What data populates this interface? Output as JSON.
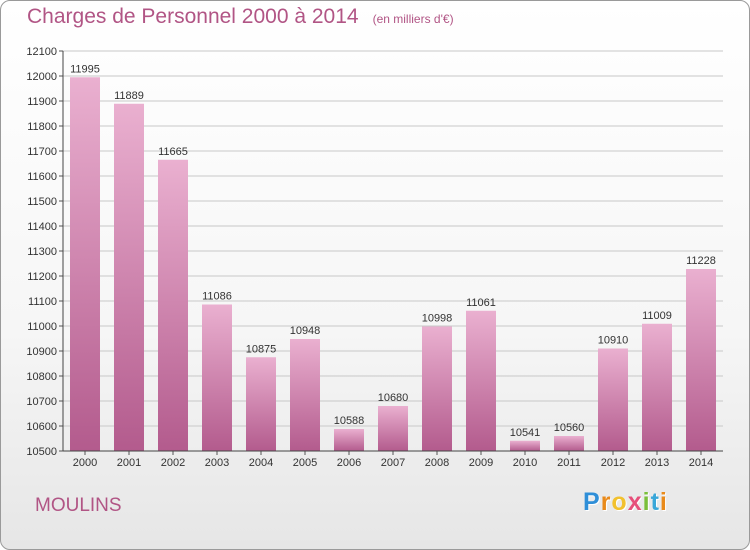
{
  "header": {
    "title": "Charges de Personnel 2000 à 2014",
    "subtitle": "(en milliers d'€)"
  },
  "footer": {
    "city": "MOULINS",
    "logo_letters": [
      "P",
      "r",
      "o",
      "x",
      "i",
      "t",
      "i"
    ],
    "logo_colors": [
      "#2f8fd8",
      "#e98a1a",
      "#f2c12e",
      "#e64f7a",
      "#7abf3a",
      "#3aa7d9",
      "#e98a1a"
    ]
  },
  "colors": {
    "accent": "#b15585",
    "bar_top": "#eab0d0",
    "bar_bottom": "#b35b8d",
    "grid": "#c8c8c8"
  },
  "chart_data": {
    "type": "bar",
    "categories": [
      "2000",
      "2001",
      "2002",
      "2003",
      "2004",
      "2005",
      "2006",
      "2007",
      "2008",
      "2009",
      "2010",
      "2011",
      "2012",
      "2013",
      "2014"
    ],
    "values": [
      11995,
      11889,
      11665,
      11086,
      10875,
      10948,
      10588,
      10680,
      10998,
      11061,
      10541,
      10560,
      10910,
      11009,
      11228
    ],
    "ylim": [
      10500,
      12100
    ],
    "yticks": [
      10500,
      10600,
      10700,
      10800,
      10900,
      11000,
      11100,
      11200,
      11300,
      11400,
      11500,
      11600,
      11700,
      11800,
      11900,
      12000,
      12100
    ],
    "grid": true,
    "data_labels": true
  }
}
